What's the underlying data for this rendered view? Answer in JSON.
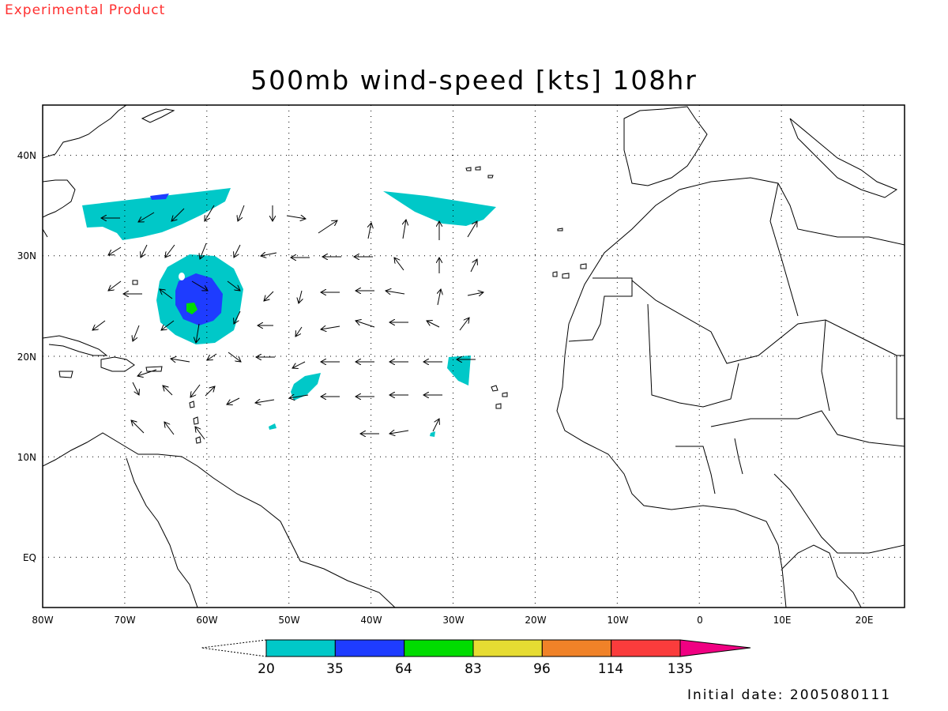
{
  "header": {
    "experimental_label": "Experimental Product",
    "title": "500mb wind-speed [kts] 108hr"
  },
  "footer": {
    "initial_date_text": "Initial date: 2005080111"
  },
  "map": {
    "lon_ticks": [
      "80W",
      "70W",
      "60W",
      "50W",
      "40W",
      "30W",
      "20W",
      "10W",
      "0",
      "10E",
      "20E"
    ],
    "lat_ticks": [
      "40N",
      "30N",
      "20N",
      "10N",
      "EQ"
    ],
    "lon_range": [
      -80,
      25
    ],
    "lat_range": [
      -5,
      45
    ],
    "gridlines": "dotted"
  },
  "colorbar": {
    "labels": [
      "20",
      "35",
      "64",
      "83",
      "96",
      "114",
      "135"
    ],
    "colors": [
      "#00c8c8",
      "#1e3cff",
      "#00dc00",
      "#e6dc32",
      "#f08228",
      "#fa3c3c",
      "#f00082"
    ]
  }
}
